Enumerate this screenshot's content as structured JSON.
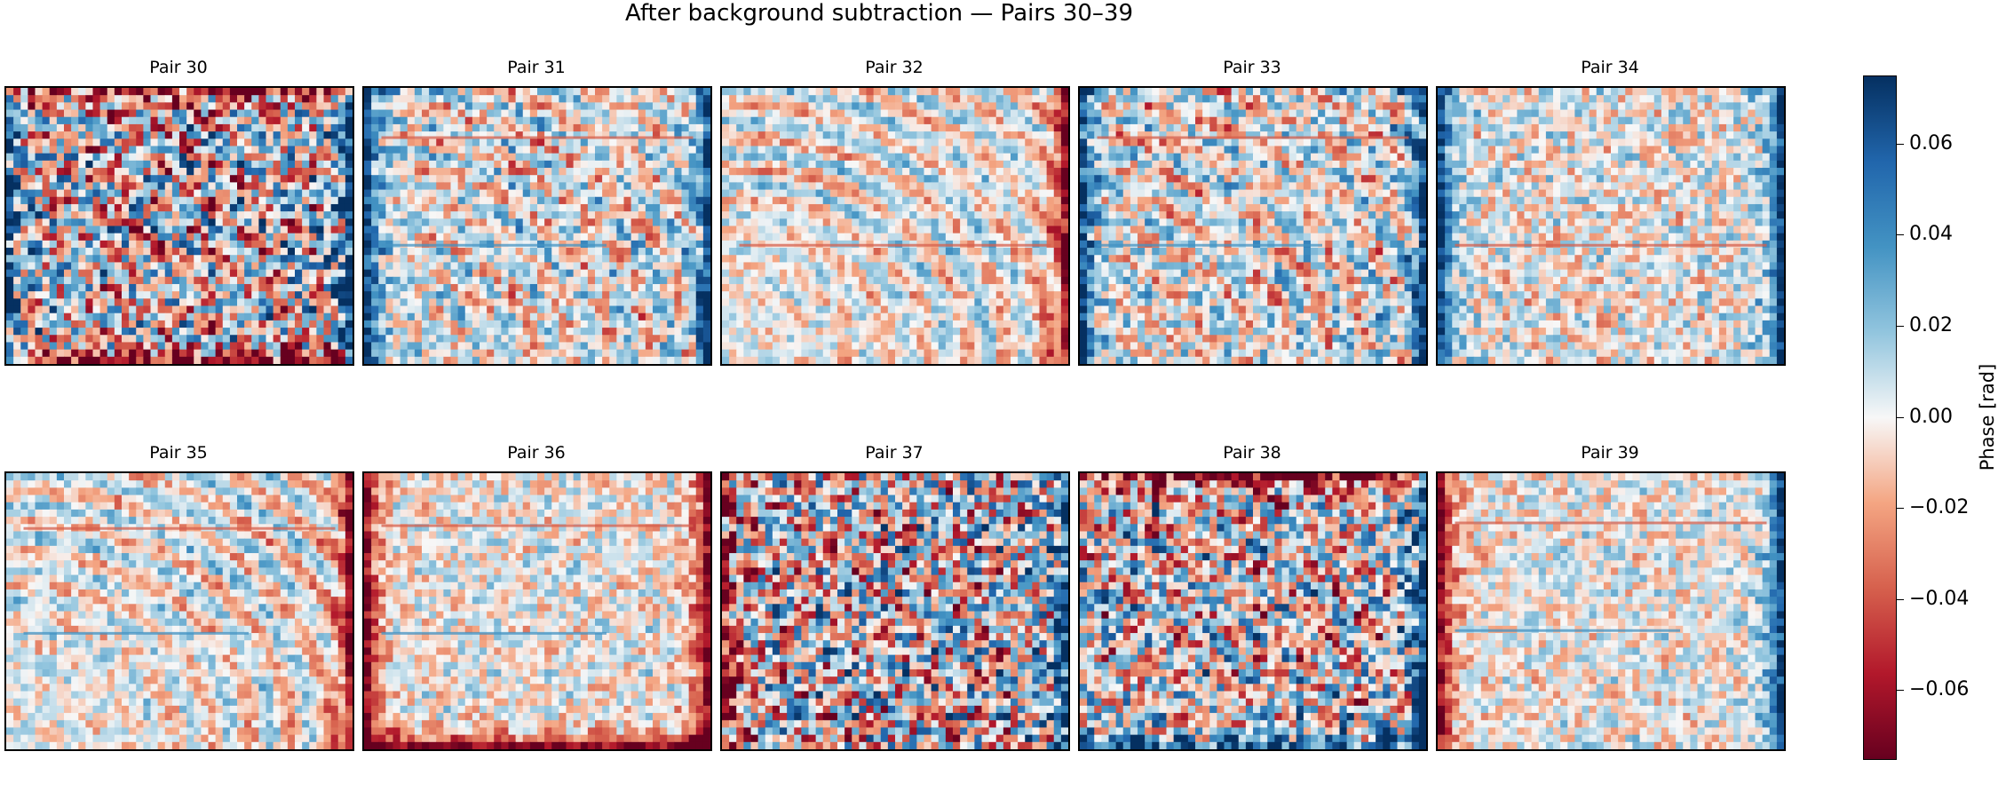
{
  "chart_data": {
    "type": "heatmap",
    "title": "After background subtraction — Pairs 30–39",
    "panels": [
      {
        "title": "Pair 30",
        "style": {
          "left_edge": "blue",
          "right_edge": "blue",
          "top_edge": "red",
          "bottom_edge": "red",
          "rings": true,
          "streaks": [],
          "noise": 0.055
        }
      },
      {
        "title": "Pair 31",
        "style": {
          "left_edge": "blue",
          "right_edge": "blue",
          "top_edge": "none",
          "bottom_edge": "none",
          "rings": true,
          "streaks": [
            0.18,
            0.57
          ],
          "noise": 0.028
        }
      },
      {
        "title": "Pair 32",
        "style": {
          "left_edge": "none",
          "right_edge": "red",
          "top_edge": "none",
          "bottom_edge": "none",
          "rings": true,
          "streaks": [
            0.57
          ],
          "noise": 0.018
        }
      },
      {
        "title": "Pair 33",
        "style": {
          "left_edge": "blue",
          "right_edge": "blue",
          "top_edge": "none",
          "bottom_edge": "none",
          "rings": true,
          "streaks": [
            0.18,
            0.57
          ],
          "noise": 0.03
        }
      },
      {
        "title": "Pair 34",
        "style": {
          "left_edge": "blue",
          "right_edge": "blue",
          "top_edge": "none",
          "bottom_edge": "none",
          "rings": false,
          "streaks": [
            0.57
          ],
          "noise": 0.025
        }
      },
      {
        "title": "Pair 35",
        "style": {
          "left_edge": "none",
          "right_edge": "red",
          "top_edge": "none",
          "bottom_edge": "none",
          "rings": true,
          "streaks": [
            0.2,
            0.58
          ],
          "noise": 0.018
        }
      },
      {
        "title": "Pair 36",
        "style": {
          "left_edge": "red",
          "right_edge": "red",
          "top_edge": "none",
          "bottom_edge": "red",
          "rings": false,
          "streaks": [
            0.19,
            0.58
          ],
          "noise": 0.022
        }
      },
      {
        "title": "Pair 37",
        "style": {
          "left_edge": "red",
          "right_edge": "blue",
          "top_edge": "none",
          "bottom_edge": "none",
          "rings": false,
          "streaks": [],
          "noise": 0.06
        }
      },
      {
        "title": "Pair 38",
        "style": {
          "left_edge": "none",
          "right_edge": "blue",
          "top_edge": "red",
          "bottom_edge": "blue",
          "rings": true,
          "streaks": [],
          "noise": 0.05
        }
      },
      {
        "title": "Pair 39",
        "style": {
          "left_edge": "red",
          "right_edge": "blue",
          "top_edge": "none",
          "bottom_edge": "none",
          "rings": false,
          "streaks": [
            0.18,
            0.57
          ],
          "noise": 0.022
        }
      }
    ],
    "colormap": "RdBu_r",
    "vmin": -0.075,
    "vmax": 0.075,
    "colorbar": {
      "label": "Phase [rad]",
      "ticks": [
        0.06,
        0.04,
        0.02,
        0.0,
        -0.02,
        -0.04,
        -0.06
      ],
      "tick_labels": [
        "0.06",
        "0.04",
        "0.02",
        "0.00",
        "−0.02",
        "−0.04",
        "−0.06"
      ]
    }
  }
}
